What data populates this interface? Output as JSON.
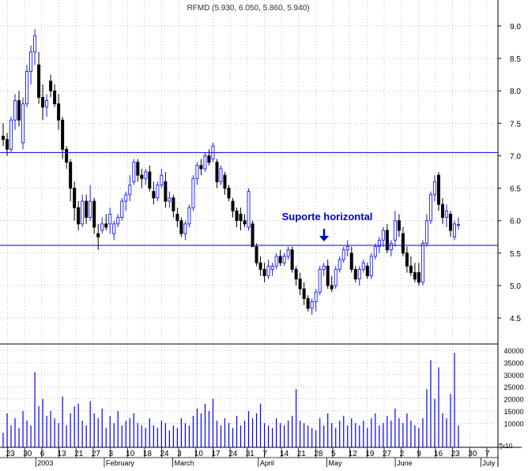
{
  "chart_data": {
    "type": "candlestick",
    "title": "RFMD (5.930, 6.050, 5.860, 5.940)",
    "annotation": "Suporte horizontal",
    "colors": {
      "up_body": "#ffffff",
      "up_outline": "#1a1aff",
      "down_body": "#000000",
      "volume": "#0000ff",
      "support_lines": "#0000dd",
      "annotation": "#0000cc",
      "gridlines": "#999999"
    },
    "price_axis": {
      "ylim": [
        4.1,
        9.4
      ],
      "ticks": [
        "4.5",
        "5.0",
        "5.5",
        "6.0",
        "6.5",
        "7.0",
        "7.5",
        "8.0",
        "8.5",
        "9.0"
      ]
    },
    "volume_axis": {
      "ylim": [
        0,
        42000
      ],
      "ticks": [
        "10000",
        "15000",
        "20000",
        "25000",
        "30000",
        "35000",
        "40000"
      ],
      "multiplier_label": "x10"
    },
    "horizontal_lines": [
      7.05,
      5.62
    ],
    "x_axis": {
      "day_ticks": [
        "23",
        "30",
        "6",
        "13",
        "21",
        "27",
        "3",
        "10",
        "18",
        "24",
        "3",
        "10",
        "17",
        "24",
        "31",
        "7",
        "14",
        "21",
        "28",
        "5",
        "12",
        "19",
        "27",
        "2",
        "9",
        "16",
        "23",
        "30",
        "7"
      ],
      "month_labels": [
        {
          "label": "2003",
          "tick": 2
        },
        {
          "label": "February",
          "tick": 6
        },
        {
          "label": "March",
          "tick": 10
        },
        {
          "label": "April",
          "tick": 15
        },
        {
          "label": "May",
          "tick": 19
        },
        {
          "label": "June",
          "tick": 23
        },
        {
          "label": "July",
          "tick": 28
        }
      ]
    },
    "candles": [
      [
        7.3,
        7.5,
        7.15,
        7.25,
        6000
      ],
      [
        7.25,
        7.35,
        7.0,
        7.1,
        14000
      ],
      [
        7.1,
        7.6,
        7.05,
        7.55,
        9000
      ],
      [
        7.55,
        7.95,
        7.4,
        7.85,
        12000
      ],
      [
        7.85,
        8.0,
        7.45,
        7.55,
        8000
      ],
      [
        7.2,
        7.9,
        7.1,
        7.8,
        15000
      ],
      [
        7.8,
        8.4,
        7.75,
        8.3,
        11000
      ],
      [
        8.3,
        8.7,
        8.1,
        8.6,
        9000
      ],
      [
        8.6,
        8.95,
        8.4,
        8.85,
        31000
      ],
      [
        8.4,
        8.6,
        7.8,
        7.9,
        17000
      ],
      [
        7.9,
        8.1,
        7.55,
        7.75,
        20000
      ],
      [
        7.75,
        7.95,
        7.6,
        7.85,
        13000
      ],
      [
        8.15,
        8.25,
        7.9,
        8.0,
        15000
      ],
      [
        8.0,
        8.1,
        7.75,
        7.8,
        12000
      ],
      [
        7.8,
        7.95,
        7.4,
        7.55,
        10000
      ],
      [
        7.55,
        7.6,
        6.95,
        7.1,
        21000
      ],
      [
        7.1,
        7.15,
        6.8,
        6.9,
        9000
      ],
      [
        6.9,
        6.95,
        6.3,
        6.5,
        14000
      ],
      [
        6.5,
        6.6,
        6.0,
        6.2,
        17000
      ],
      [
        6.2,
        6.3,
        5.85,
        5.95,
        18000
      ],
      [
        5.95,
        6.4,
        5.9,
        6.3,
        11000
      ],
      [
        6.3,
        6.4,
        5.95,
        6.05,
        9000
      ],
      [
        6.05,
        6.55,
        6.0,
        6.3,
        19000
      ],
      [
        6.3,
        6.35,
        5.8,
        5.9,
        14000
      ],
      [
        5.8,
        5.95,
        5.55,
        5.75,
        12000
      ],
      [
        5.85,
        6.05,
        5.8,
        5.95,
        16000
      ],
      [
        5.95,
        6.1,
        5.85,
        5.9,
        8000
      ],
      [
        5.95,
        6.2,
        5.8,
        6.1,
        13000
      ],
      [
        5.8,
        6.0,
        5.7,
        5.95,
        10000
      ],
      [
        5.95,
        6.1,
        5.9,
        6.05,
        15000
      ],
      [
        6.05,
        6.35,
        6.0,
        6.3,
        9000
      ],
      [
        6.3,
        6.45,
        6.15,
        6.4,
        11000
      ],
      [
        6.4,
        6.7,
        6.3,
        6.55,
        12000
      ],
      [
        6.6,
        6.95,
        6.55,
        6.9,
        14000
      ],
      [
        6.9,
        6.95,
        6.6,
        6.7,
        10000
      ],
      [
        6.7,
        6.8,
        6.5,
        6.65,
        9000
      ],
      [
        6.65,
        6.8,
        6.55,
        6.75,
        8000
      ],
      [
        6.75,
        6.85,
        6.45,
        6.5,
        12000
      ],
      [
        6.45,
        6.6,
        6.25,
        6.35,
        9000
      ],
      [
        6.35,
        6.6,
        6.3,
        6.55,
        8000
      ],
      [
        6.55,
        6.8,
        6.5,
        6.7,
        11000
      ],
      [
        6.6,
        6.75,
        6.2,
        6.3,
        10000
      ],
      [
        6.3,
        6.45,
        6.2,
        6.35,
        7000
      ],
      [
        6.35,
        6.4,
        6.05,
        6.15,
        9000
      ],
      [
        6.1,
        6.2,
        5.9,
        6.0,
        8000
      ],
      [
        6.0,
        6.05,
        5.75,
        5.8,
        12000
      ],
      [
        5.8,
        6.0,
        5.7,
        5.95,
        10000
      ],
      [
        5.95,
        6.25,
        5.9,
        6.2,
        9000
      ],
      [
        6.2,
        6.7,
        6.15,
        6.65,
        13000
      ],
      [
        6.65,
        6.9,
        6.55,
        6.85,
        16000
      ],
      [
        6.85,
        6.95,
        6.7,
        6.8,
        14000
      ],
      [
        6.8,
        7.05,
        6.75,
        7.0,
        18000
      ],
      [
        7.0,
        7.1,
        6.85,
        6.9,
        15000
      ],
      [
        6.95,
        7.2,
        6.9,
        7.15,
        20000
      ],
      [
        6.9,
        6.95,
        6.5,
        6.6,
        11000
      ],
      [
        6.6,
        6.85,
        6.55,
        6.8,
        9000
      ],
      [
        6.7,
        6.75,
        6.4,
        6.5,
        12000
      ],
      [
        6.5,
        6.55,
        6.3,
        6.35,
        10000
      ],
      [
        6.3,
        6.35,
        6.05,
        6.15,
        8000
      ],
      [
        6.15,
        6.2,
        5.9,
        6.0,
        13000
      ],
      [
        6.1,
        6.2,
        5.85,
        6.0,
        9000
      ],
      [
        6.0,
        6.1,
        5.9,
        5.95,
        11000
      ],
      [
        5.9,
        6.5,
        5.85,
        6.45,
        15000
      ],
      [
        5.95,
        6.0,
        5.6,
        5.6,
        12000
      ],
      [
        5.6,
        5.65,
        5.3,
        5.35,
        14000
      ],
      [
        5.35,
        5.45,
        5.15,
        5.25,
        18000
      ],
      [
        5.25,
        5.35,
        5.05,
        5.15,
        10000
      ],
      [
        5.15,
        5.4,
        5.1,
        5.3,
        9000
      ],
      [
        5.25,
        5.35,
        5.15,
        5.3,
        8000
      ],
      [
        5.3,
        5.5,
        5.25,
        5.45,
        12000
      ],
      [
        5.45,
        5.55,
        5.3,
        5.35,
        10000
      ],
      [
        5.35,
        5.5,
        5.3,
        5.45,
        9000
      ],
      [
        5.45,
        5.6,
        5.4,
        5.55,
        11000
      ],
      [
        5.55,
        5.6,
        5.2,
        5.25,
        13000
      ],
      [
        5.25,
        5.3,
        5.0,
        5.1,
        24000
      ],
      [
        5.1,
        5.2,
        4.85,
        4.95,
        11000
      ],
      [
        4.95,
        5.05,
        4.7,
        4.8,
        10000
      ],
      [
        4.8,
        4.85,
        4.6,
        4.65,
        9000
      ],
      [
        4.65,
        4.8,
        4.55,
        4.75,
        8000
      ],
      [
        4.75,
        4.95,
        4.6,
        4.9,
        7000
      ],
      [
        4.9,
        5.3,
        4.85,
        5.25,
        12000
      ],
      [
        5.25,
        5.35,
        5.15,
        5.3,
        9000
      ],
      [
        5.3,
        5.4,
        4.95,
        5.0,
        14000
      ],
      [
        5.0,
        5.15,
        4.9,
        4.95,
        10000
      ],
      [
        5.0,
        5.3,
        4.95,
        5.25,
        8000
      ],
      [
        5.25,
        5.45,
        5.2,
        5.4,
        11000
      ],
      [
        5.4,
        5.6,
        5.35,
        5.55,
        13000
      ],
      [
        5.55,
        5.7,
        5.45,
        5.6,
        9000
      ],
      [
        5.5,
        5.6,
        5.2,
        5.25,
        12000
      ],
      [
        5.25,
        5.3,
        5.05,
        5.1,
        10000
      ],
      [
        5.1,
        5.3,
        5.0,
        5.25,
        9000
      ],
      [
        5.25,
        5.4,
        5.2,
        5.35,
        11000
      ],
      [
        5.3,
        5.35,
        5.1,
        5.15,
        8000
      ],
      [
        5.15,
        5.5,
        5.1,
        5.45,
        12000
      ],
      [
        5.45,
        5.65,
        5.4,
        5.6,
        14000
      ],
      [
        5.6,
        5.75,
        5.5,
        5.7,
        9000
      ],
      [
        5.7,
        5.9,
        5.6,
        5.85,
        10000
      ],
      [
        5.85,
        5.95,
        5.5,
        5.55,
        13000
      ],
      [
        5.55,
        5.7,
        5.45,
        5.65,
        11000
      ],
      [
        5.7,
        6.15,
        5.6,
        6.0,
        16000
      ],
      [
        6.0,
        6.1,
        5.75,
        5.85,
        12000
      ],
      [
        5.8,
        5.9,
        5.45,
        5.5,
        10000
      ],
      [
        5.5,
        5.6,
        5.2,
        5.3,
        14000
      ],
      [
        5.3,
        5.45,
        5.15,
        5.2,
        11000
      ],
      [
        5.2,
        5.35,
        5.05,
        5.1,
        9000
      ],
      [
        5.2,
        5.35,
        5.0,
        5.05,
        8000
      ],
      [
        5.05,
        5.7,
        5.0,
        5.65,
        12000
      ],
      [
        5.65,
        6.1,
        5.6,
        6.0,
        24000
      ],
      [
        6.0,
        6.45,
        5.95,
        6.4,
        36000
      ],
      [
        6.4,
        6.7,
        6.3,
        6.6,
        20000
      ],
      [
        6.7,
        6.75,
        6.15,
        6.25,
        33000
      ],
      [
        6.25,
        6.35,
        5.95,
        6.05,
        14000
      ],
      [
        6.05,
        6.25,
        5.9,
        6.15,
        12000
      ],
      [
        6.1,
        6.15,
        5.75,
        5.85,
        22000
      ],
      [
        5.75,
        6.0,
        5.7,
        5.95,
        39000
      ],
      [
        5.93,
        6.05,
        5.86,
        5.94,
        9000
      ]
    ]
  }
}
